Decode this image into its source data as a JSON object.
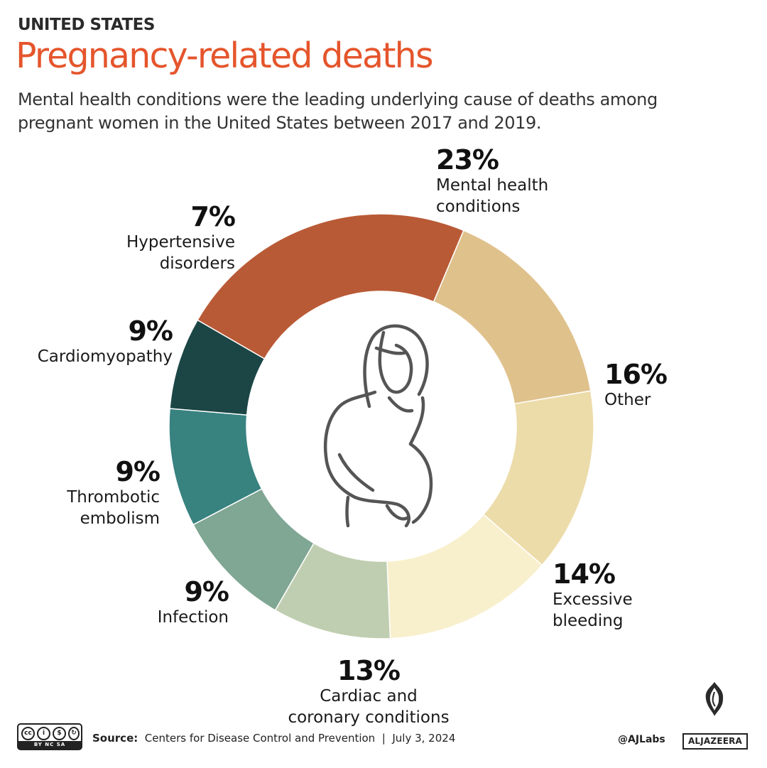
{
  "header": {
    "kicker": "UNITED STATES",
    "title": "Pregnancy-related deaths",
    "subtitle": "Mental health conditions were the leading underlying cause of deaths among pregnant women in the United States between 2017 and 2019."
  },
  "chart_data": {
    "type": "pie",
    "style": "donut",
    "unit": "%",
    "start_category": "Mental health conditions",
    "direction": "clockwise",
    "segments": [
      {
        "name": "Mental health conditions",
        "value": 23,
        "label": "23%",
        "label_lines": [
          "Mental health",
          "conditions"
        ],
        "color": "#b95a36"
      },
      {
        "name": "Other",
        "value": 16,
        "label": "16%",
        "label_lines": [
          "Other"
        ],
        "color": "#dfc18c"
      },
      {
        "name": "Excessive bleeding",
        "value": 14,
        "label": "14%",
        "label_lines": [
          "Excessive",
          "bleeding"
        ],
        "color": "#ecdcaa"
      },
      {
        "name": "Cardiac and coronary conditions",
        "value": 13,
        "label": "13%",
        "label_lines": [
          "Cardiac and",
          "coronary conditions"
        ],
        "color": "#f8f0cc"
      },
      {
        "name": "Infection",
        "value": 9,
        "label": "9%",
        "label_lines": [
          "Infection"
        ],
        "color": "#bfceb0"
      },
      {
        "name": "Thrombotic embolism",
        "value": 9,
        "label": "9%",
        "label_lines": [
          "Thrombotic",
          "embolism"
        ],
        "color": "#80a694"
      },
      {
        "name": "Cardiomyopathy",
        "value": 9,
        "label": "9%",
        "label_lines": [
          "Cardiomyopathy"
        ],
        "color": "#388280"
      },
      {
        "name": "Hypertensive disorders",
        "value": 7,
        "label": "7%",
        "label_lines": [
          "Hypertensive",
          "disorders"
        ],
        "color": "#1b4645"
      }
    ],
    "center_icon": "pregnant-woman-icon"
  },
  "footer": {
    "license_icon": "creative-commons-by-nc-sa-icon",
    "license_terms": "BY  NC  SA",
    "source_label": "Source:",
    "source": "Centers for Disease Control and Prevention",
    "separator": "|",
    "date": "July 3, 2024",
    "handle": "@AJLabs",
    "brand_icon": "al-jazeera-logo-icon",
    "brand": "ALJAZEERA"
  }
}
